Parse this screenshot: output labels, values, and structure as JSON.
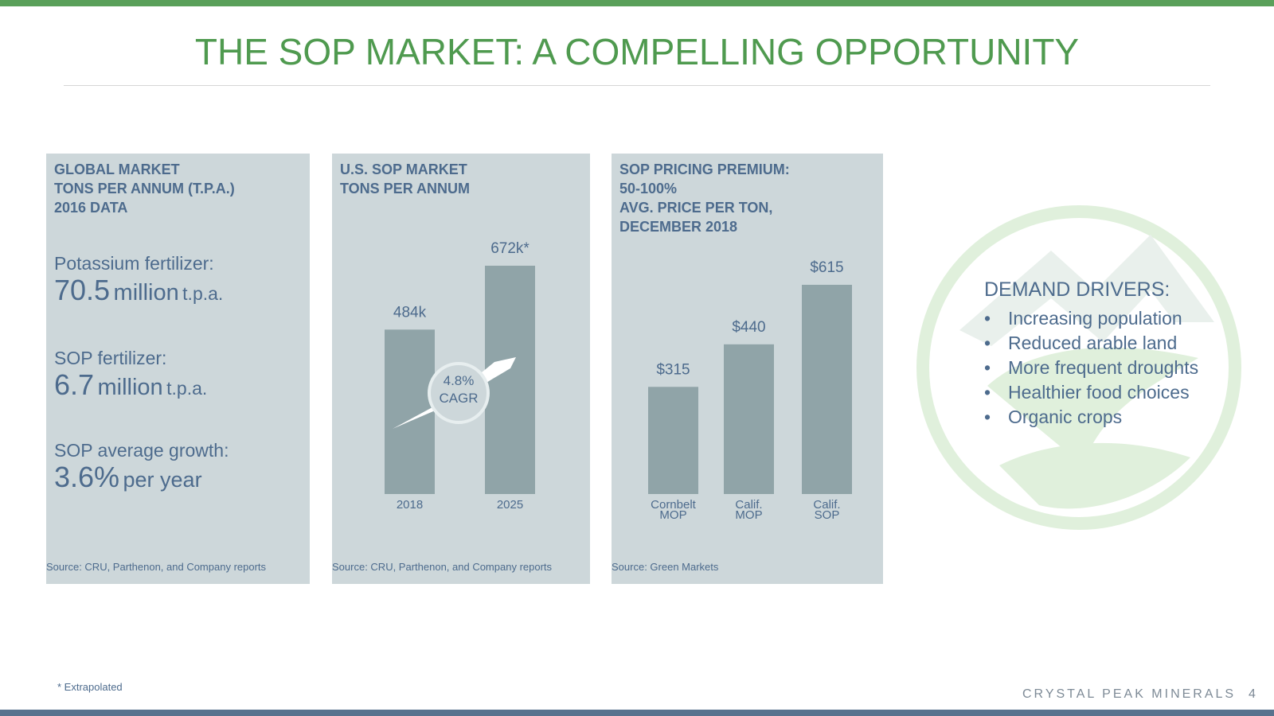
{
  "title": "THE SOP MARKET: A COMPELLING OPPORTUNITY",
  "colors": {
    "accent_green": "#4f9a4f",
    "bar": "#90a4a8",
    "panel": "#cdd7da",
    "text": "#4d6b8d"
  },
  "panel_global": {
    "title_lines": [
      "GLOBAL MARKET",
      "TONS PER ANNUM (T.P.A.)",
      "2016 DATA"
    ],
    "stats": [
      {
        "label": "Potassium fertilizer:",
        "value": "70.5",
        "unit": "million",
        "suffix": "t.p.a."
      },
      {
        "label": "SOP fertilizer:",
        "value": "6.7",
        "unit": "million",
        "suffix": "t.p.a."
      },
      {
        "label": "SOP average growth:",
        "value": "3.6%",
        "unit": "per year",
        "suffix": ""
      }
    ],
    "source": "Source: CRU, Parthenon, and Company reports"
  },
  "panel_us": {
    "title_lines": [
      "U.S. SOP MARKET",
      "TONS PER ANNUM"
    ],
    "cagr_value": "4.8%",
    "cagr_label": "CAGR",
    "source": "Source: CRU, Parthenon, and Company reports"
  },
  "panel_price": {
    "title_lines": [
      "SOP PRICING PREMIUM:",
      "50-100%",
      "AVG. PRICE PER TON,",
      "DECEMBER 2018"
    ],
    "source": "Source: Green Markets"
  },
  "chart_data": [
    {
      "type": "bar",
      "title": "U.S. SOP MARKET TONS PER ANNUM",
      "categories": [
        "2018",
        "2025"
      ],
      "values": [
        484,
        672
      ],
      "value_labels": [
        "484k",
        "672k*"
      ],
      "ylim": [
        0,
        672
      ]
    },
    {
      "type": "bar",
      "title": "SOP PRICING PREMIUM: 50-100% AVG. PRICE PER TON, DECEMBER 2018",
      "categories": [
        [
          "Cornbelt",
          "MOP"
        ],
        [
          "Calif.",
          "MOP"
        ],
        [
          "Calif.",
          "SOP"
        ]
      ],
      "values": [
        315,
        440,
        615
      ],
      "value_labels": [
        "$315",
        "$440",
        "$615"
      ],
      "ylim": [
        0,
        615
      ]
    }
  ],
  "demand_drivers": {
    "title": "DEMAND DRIVERS:",
    "items": [
      "Increasing population",
      "Reduced arable land",
      "More frequent droughts",
      "Healthier food choices",
      "Organic crops"
    ]
  },
  "footnote": "* Extrapolated",
  "footer": {
    "company": "CRYSTAL PEAK MINERALS",
    "page": "4"
  }
}
